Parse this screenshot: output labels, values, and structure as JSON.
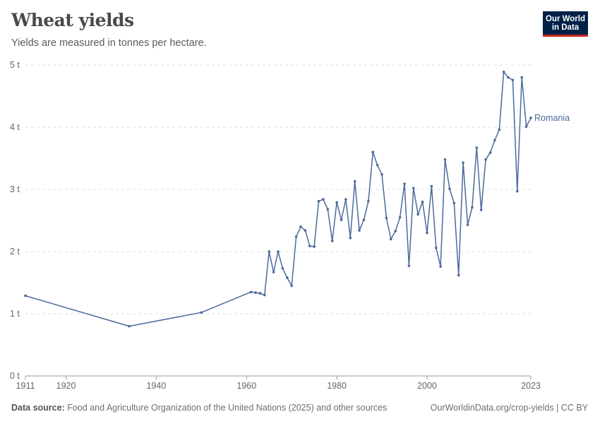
{
  "header": {
    "title": "Wheat yields",
    "subtitle": "Yields are measured in tonnes per hectare.",
    "logo_line1": "Our World",
    "logo_line2": "in Data"
  },
  "footer": {
    "source_label": "Data source:",
    "source_text": "Food and Agriculture Organization of the United Nations (2025) and other sources",
    "link_text": "OurWorldinData.org/crop-yields | CC BY"
  },
  "colors": {
    "series": "#4c6a9c",
    "grid": "#dddddd",
    "axis": "#999999",
    "tick_text": "#666666"
  },
  "chart_data": {
    "type": "line",
    "title": "Wheat yields",
    "subtitle": "Yields are measured in tonnes per hectare.",
    "xlabel": "",
    "ylabel": "",
    "xlim": [
      1911,
      2023
    ],
    "ylim": [
      0,
      5
    ],
    "grid": true,
    "y_ticks": [
      {
        "value": 0,
        "label": "0 t"
      },
      {
        "value": 1,
        "label": "1 t"
      },
      {
        "value": 2,
        "label": "2 t"
      },
      {
        "value": 3,
        "label": "3 t"
      },
      {
        "value": 4,
        "label": "4 t"
      },
      {
        "value": 5,
        "label": "5 t"
      }
    ],
    "x_ticks": [
      {
        "value": 1911,
        "label": "1911"
      },
      {
        "value": 1920,
        "label": "1920"
      },
      {
        "value": 1940,
        "label": "1940"
      },
      {
        "value": 1960,
        "label": "1960"
      },
      {
        "value": 1980,
        "label": "1980"
      },
      {
        "value": 2000,
        "label": "2000"
      },
      {
        "value": 2023,
        "label": "2023"
      }
    ],
    "series": [
      {
        "name": "Romania",
        "x": [
          1911,
          1934,
          1950,
          1961,
          1962,
          1963,
          1964,
          1965,
          1966,
          1967,
          1968,
          1969,
          1970,
          1971,
          1972,
          1973,
          1974,
          1975,
          1976,
          1977,
          1978,
          1979,
          1980,
          1981,
          1982,
          1983,
          1984,
          1985,
          1986,
          1987,
          1988,
          1989,
          1990,
          1991,
          1992,
          1993,
          1994,
          1995,
          1996,
          1997,
          1998,
          1999,
          2000,
          2001,
          2002,
          2003,
          2004,
          2005,
          2006,
          2007,
          2008,
          2009,
          2010,
          2011,
          2012,
          2013,
          2014,
          2015,
          2016,
          2017,
          2018,
          2019,
          2020,
          2021,
          2022,
          2023
        ],
        "y": [
          1.29,
          0.8,
          1.02,
          1.35,
          1.34,
          1.33,
          1.3,
          2.0,
          1.67,
          2.0,
          1.73,
          1.58,
          1.45,
          2.24,
          2.4,
          2.34,
          2.09,
          2.08,
          2.81,
          2.84,
          2.68,
          2.17,
          2.79,
          2.51,
          2.84,
          2.22,
          3.13,
          2.34,
          2.51,
          2.81,
          3.6,
          3.39,
          3.24,
          2.54,
          2.2,
          2.33,
          2.55,
          3.09,
          1.77,
          3.02,
          2.6,
          2.8,
          2.3,
          3.05,
          2.06,
          1.76,
          3.48,
          3.01,
          2.78,
          1.62,
          3.43,
          2.43,
          2.71,
          3.67,
          2.67,
          3.48,
          3.59,
          3.79,
          3.96,
          4.89,
          4.8,
          4.76,
          2.97,
          4.8,
          4.01,
          4.15
        ]
      }
    ]
  }
}
